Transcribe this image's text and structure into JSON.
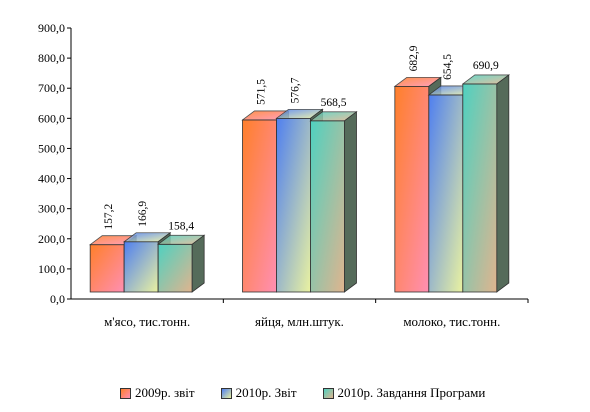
{
  "chart_data": {
    "type": "bar",
    "categories": [
      "м'ясо, тис.тонн.",
      "яйця, млн.штук.",
      "молоко, тис.тонн."
    ],
    "series": [
      {
        "name": "2009р. звіт",
        "values": [
          157.2,
          571.5,
          682.9
        ],
        "labels": [
          "157,2",
          "571,5",
          "682,9"
        ],
        "color": "#ff7f2a",
        "color2": "#ff8fb3"
      },
      {
        "name": "2010р. Звіт",
        "values": [
          166.9,
          576.7,
          654.5
        ],
        "labels": [
          "166,9",
          "576,7",
          "654,5"
        ],
        "color": "#4f7ff0",
        "color2": "#eaf2a0"
      },
      {
        "name": "2010р. Завдання Програми",
        "values": [
          158.4,
          568.5,
          690.9
        ],
        "labels": [
          "158,4",
          "568,5",
          "690,9"
        ],
        "color": "#4fd1c0",
        "color2": "#e0b48e"
      }
    ],
    "yticks": [
      "0,0",
      "100,0",
      "200,0",
      "300,0",
      "400,0",
      "500,0",
      "600,0",
      "700,0",
      "800,0",
      "900,0"
    ],
    "ylim": [
      0,
      900
    ],
    "legend_position": "bottom",
    "grid": false
  }
}
